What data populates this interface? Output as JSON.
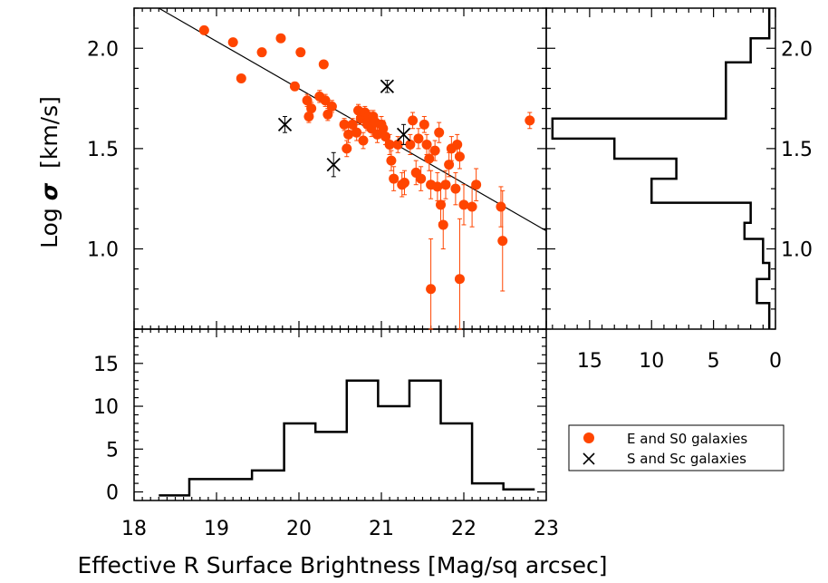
{
  "chart_data": {
    "type": "scatter",
    "xlabel": "Effective R Surface Brightness [Mag/sq arcsec]",
    "ylabel_prefix": "Log ",
    "ylabel_symbol": "σ",
    "ylabel_suffix": "  [km/s]",
    "xlim": [
      18,
      23
    ],
    "ylim": [
      0.6,
      2.2
    ],
    "x_ticks": [
      "18",
      "19",
      "20",
      "21",
      "22",
      "23"
    ],
    "y_ticks": [
      "1.0",
      "1.5",
      "2.0"
    ],
    "fit_line": {
      "x": [
        18.3,
        23.0
      ],
      "y": [
        2.2,
        1.09
      ]
    },
    "series": [
      {
        "name": "E and S0 galaxies",
        "marker": "filled-circle",
        "color": "#ff4500",
        "points": [
          [
            18.85,
            2.09,
            0
          ],
          [
            19.2,
            2.03,
            0
          ],
          [
            19.3,
            1.85,
            0
          ],
          [
            19.55,
            1.98,
            0
          ],
          [
            19.78,
            2.05,
            0
          ],
          [
            19.95,
            1.81,
            0.02
          ],
          [
            20.02,
            1.98,
            0
          ],
          [
            20.3,
            1.92,
            0
          ],
          [
            20.1,
            1.74,
            0.03
          ],
          [
            20.15,
            1.7,
            0.03
          ],
          [
            20.12,
            1.66,
            0.03
          ],
          [
            20.25,
            1.76,
            0.03
          ],
          [
            20.32,
            1.74,
            0.03
          ],
          [
            20.35,
            1.67,
            0.03
          ],
          [
            20.4,
            1.71,
            0.03
          ],
          [
            20.55,
            1.62,
            0.03
          ],
          [
            20.6,
            1.57,
            0.04
          ],
          [
            20.58,
            1.5,
            0.04
          ],
          [
            20.65,
            1.62,
            0.03
          ],
          [
            20.7,
            1.58,
            0.04
          ],
          [
            20.72,
            1.69,
            0.03
          ],
          [
            20.75,
            1.65,
            0.03
          ],
          [
            20.78,
            1.54,
            0.04
          ],
          [
            20.8,
            1.68,
            0.03
          ],
          [
            20.83,
            1.62,
            0.03
          ],
          [
            20.85,
            1.66,
            0.03
          ],
          [
            20.88,
            1.6,
            0.04
          ],
          [
            20.9,
            1.66,
            0.03
          ],
          [
            20.93,
            1.63,
            0.04
          ],
          [
            20.95,
            1.57,
            0.04
          ],
          [
            21.0,
            1.62,
            0.04
          ],
          [
            21.02,
            1.6,
            0.04
          ],
          [
            21.05,
            1.56,
            0.04
          ],
          [
            21.1,
            1.52,
            0.05
          ],
          [
            21.12,
            1.44,
            0.05
          ],
          [
            21.15,
            1.35,
            0.06
          ],
          [
            21.2,
            1.52,
            0.04
          ],
          [
            21.25,
            1.32,
            0.06
          ],
          [
            21.28,
            1.33,
            0.06
          ],
          [
            21.35,
            1.52,
            0.05
          ],
          [
            21.38,
            1.64,
            0.04
          ],
          [
            21.42,
            1.38,
            0.06
          ],
          [
            21.45,
            1.55,
            0.05
          ],
          [
            21.48,
            1.35,
            0.06
          ],
          [
            21.52,
            1.62,
            0.04
          ],
          [
            21.55,
            1.52,
            0.05
          ],
          [
            21.58,
            1.45,
            0.06
          ],
          [
            21.6,
            1.32,
            0.07
          ],
          [
            21.65,
            1.49,
            0.05
          ],
          [
            21.68,
            1.31,
            0.07
          ],
          [
            21.7,
            1.58,
            0.05
          ],
          [
            21.72,
            1.22,
            0.09
          ],
          [
            21.75,
            1.12,
            0.12
          ],
          [
            21.78,
            1.32,
            0.07
          ],
          [
            21.82,
            1.42,
            0.06
          ],
          [
            21.85,
            1.5,
            0.06
          ],
          [
            21.9,
            1.3,
            0.08
          ],
          [
            21.92,
            1.52,
            0.05
          ],
          [
            21.95,
            1.46,
            0.06
          ],
          [
            22.0,
            1.22,
            0.1
          ],
          [
            22.1,
            1.21,
            0.1
          ],
          [
            22.15,
            1.32,
            0.08
          ],
          [
            21.6,
            0.8,
            0.25
          ],
          [
            21.95,
            0.85,
            0.3
          ],
          [
            22.45,
            1.21,
            0.1
          ],
          [
            22.47,
            1.04,
            0.25
          ],
          [
            22.8,
            1.64,
            0.04
          ]
        ]
      },
      {
        "name": "S and Sc galaxies",
        "marker": "cross",
        "color": "#000000",
        "points": [
          [
            19.83,
            1.62,
            0.04
          ],
          [
            20.42,
            1.42,
            0.06
          ],
          [
            21.07,
            1.81,
            0.03
          ],
          [
            21.27,
            1.57,
            0.05
          ]
        ]
      }
    ],
    "histogram_x": {
      "ylim": [
        -1,
        19
      ],
      "y_ticks": [
        "0",
        "5",
        "10",
        "15"
      ],
      "bin_edges": [
        18.3,
        18.67,
        19.05,
        19.43,
        19.82,
        20.2,
        20.58,
        20.96,
        21.34,
        21.72,
        22.1,
        22.48,
        22.86
      ],
      "counts": [
        -0.4,
        1.5,
        1.5,
        2.5,
        8,
        7,
        13,
        10,
        13,
        8,
        1,
        0.3
      ]
    },
    "histogram_y": {
      "xlim": [
        18.5,
        0
      ],
      "x_ticks": [
        "15",
        "10",
        "5",
        "0"
      ],
      "bin_edges": [
        0.6,
        0.73,
        0.85,
        0.93,
        1.05,
        1.13,
        1.23,
        1.35,
        1.45,
        1.55,
        1.65,
        1.93,
        2.05,
        2.2
      ],
      "counts": [
        0.5,
        1.5,
        0.5,
        1,
        2.5,
        2,
        10,
        8,
        13,
        18,
        4,
        2,
        0.5
      ]
    },
    "legend": {
      "position": "bottom-right",
      "entries": [
        "E and S0 galaxies",
        "S and Sc galaxies"
      ]
    }
  }
}
